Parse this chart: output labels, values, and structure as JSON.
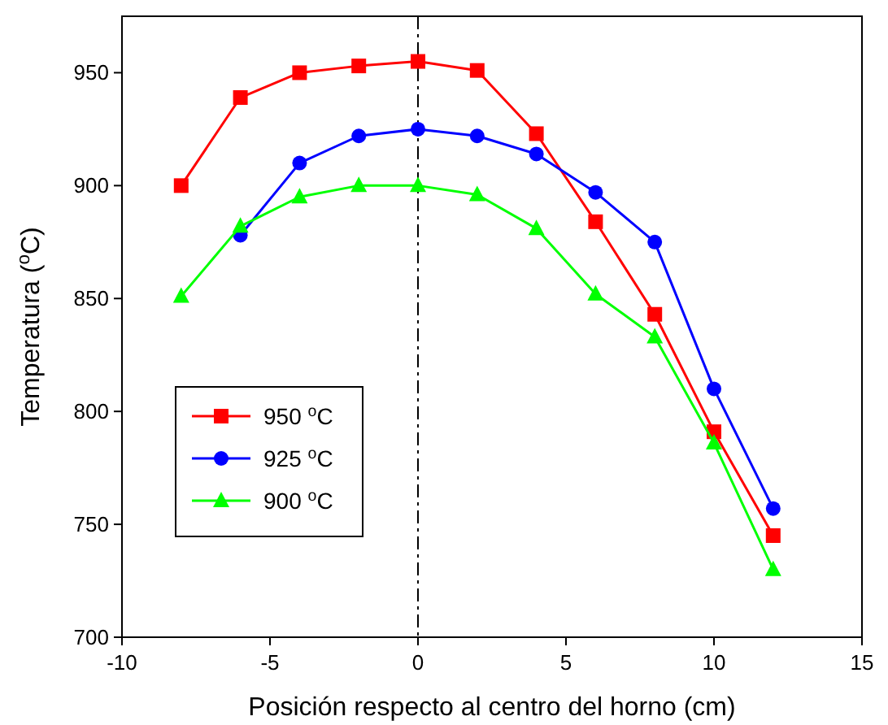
{
  "chart_data": {
    "type": "line",
    "xlabel": "Posición respecto al centro del horno (cm)",
    "ylabel": "Temperatura ($^{o}$C)",
    "xlim": [
      -10,
      15
    ],
    "xticks": [
      -10,
      -5,
      0,
      5,
      10,
      15
    ],
    "ylim": [
      700,
      975
    ],
    "yticks": [
      700,
      750,
      800,
      850,
      900,
      950
    ],
    "legend": "bottom left",
    "grid": false,
    "line_style": "solid",
    "series": [
      {
        "name": "950 $^{o}$C",
        "color": "#ff0000",
        "marker": "square",
        "x": [
          -8,
          -6,
          -4,
          -2,
          0,
          2,
          4,
          6,
          8,
          10,
          12
        ],
        "values": [
          900,
          939,
          950,
          953,
          955,
          951,
          923,
          884,
          843,
          791,
          745
        ]
      },
      {
        "name": "925 $^{o}$C",
        "color": "#0000ff",
        "marker": "circle",
        "x": [
          -6,
          -4,
          -2,
          0,
          2,
          4,
          6,
          8,
          10,
          12
        ],
        "values": [
          878,
          910,
          922,
          925,
          922,
          914,
          897,
          875,
          810,
          757
        ]
      },
      {
        "name": "900 $^{o}$C",
        "color": "#00ff00",
        "marker": "triangle",
        "x": [
          -8,
          -6,
          -4,
          -2,
          0,
          2,
          4,
          6,
          8,
          10,
          12
        ],
        "values": [
          851,
          882,
          895,
          900,
          900,
          896,
          881,
          852,
          833,
          786,
          730
        ]
      }
    ],
    "ref_lines": [
      {
        "axis": "x",
        "value": 0,
        "line_style": "dashed",
        "color": "#000000"
      }
    ]
  }
}
